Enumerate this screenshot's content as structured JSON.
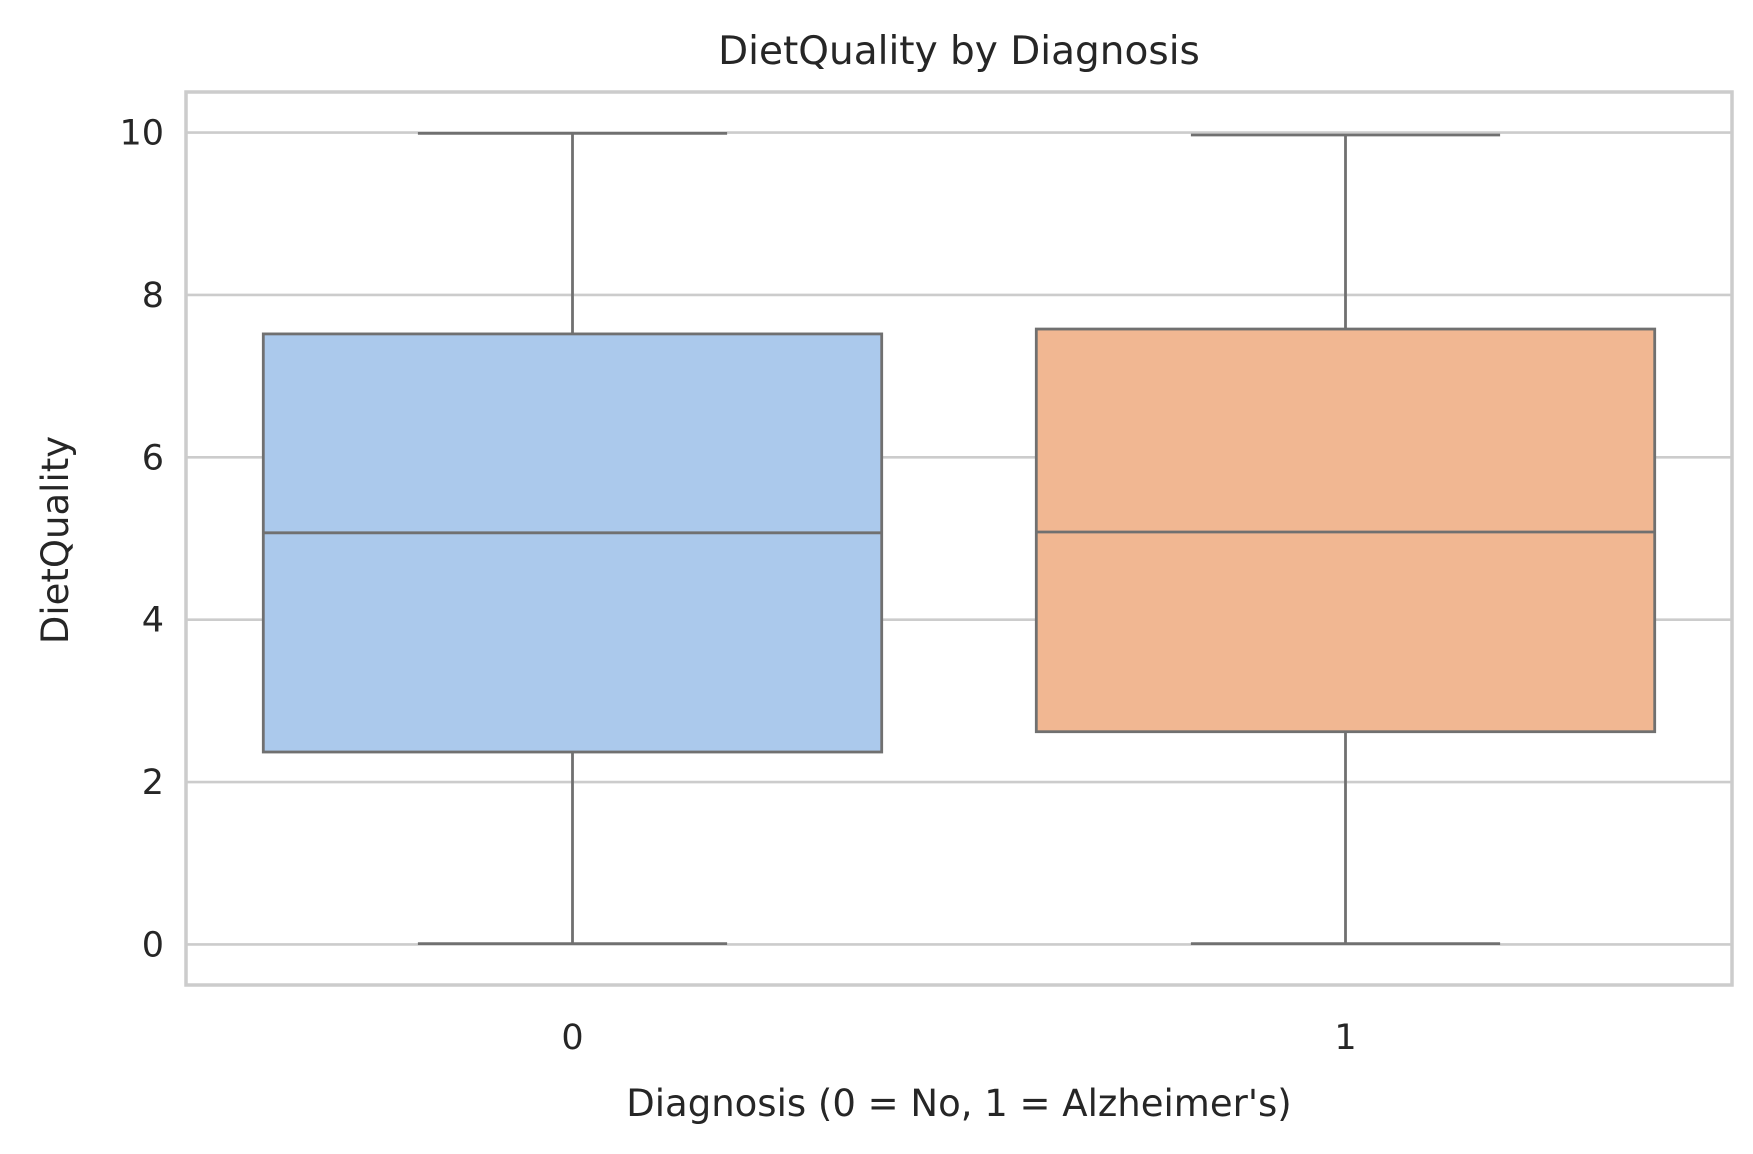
{
  "chart_data": {
    "type": "box",
    "title": "DietQuality by Diagnosis",
    "xlabel": "Diagnosis (0 = No, 1 = Alzheimer's)",
    "ylabel": "DietQuality",
    "categories": [
      "0",
      "1"
    ],
    "ylim": [
      -0.5,
      10.5
    ],
    "yticks": [
      0,
      2,
      4,
      6,
      8,
      10
    ],
    "ytick_labels": [
      "0",
      "2",
      "4",
      "6",
      "8",
      "10"
    ],
    "grid": true,
    "boxes": [
      {
        "category": "0",
        "min": 0.01,
        "q1": 2.37,
        "median": 5.07,
        "q3": 7.52,
        "max": 9.99,
        "color": "#abc9ec"
      },
      {
        "category": "1",
        "min": 0.01,
        "q1": 2.62,
        "median": 5.08,
        "q3": 7.58,
        "max": 9.97,
        "color": "#f1b792"
      }
    ]
  }
}
